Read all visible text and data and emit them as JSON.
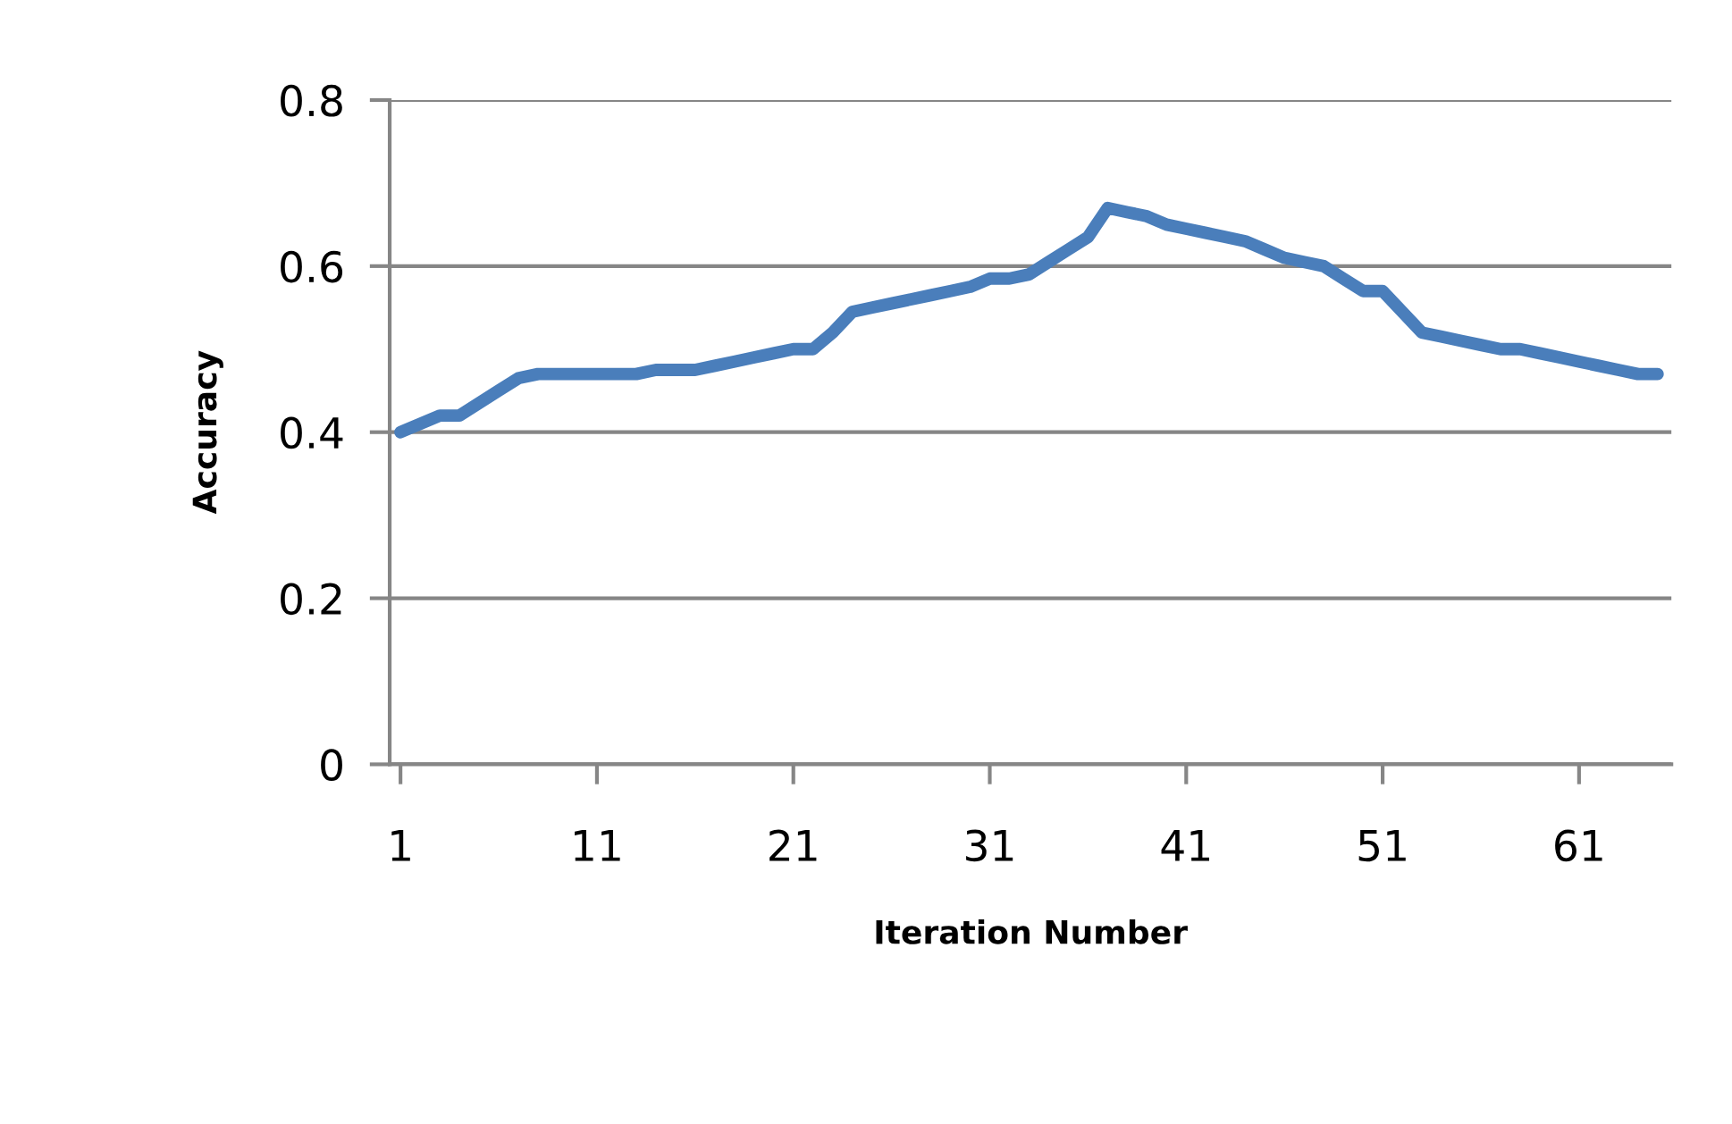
{
  "chart_data": {
    "type": "line",
    "xlabel": "Iteration Number",
    "ylabel": "Accuracy",
    "categories": [
      "1",
      null,
      null,
      null,
      null,
      null,
      null,
      null,
      null,
      null,
      "11",
      null,
      null,
      null,
      null,
      null,
      null,
      null,
      null,
      null,
      "21",
      null,
      null,
      null,
      null,
      null,
      null,
      null,
      null,
      null,
      "31",
      null,
      null,
      null,
      null,
      null,
      null,
      null,
      null,
      null,
      "41",
      null,
      null,
      null,
      null,
      null,
      null,
      null,
      null,
      null,
      "51",
      null,
      null,
      null,
      null,
      null,
      null,
      null,
      null,
      null,
      "61",
      null,
      null,
      null,
      null
    ],
    "series": [
      {
        "color": "#4a7ebb",
        "values": [
          0.4,
          0.41,
          0.42,
          0.42,
          0.435,
          0.45,
          0.465,
          0.47,
          0.47,
          0.47,
          0.47,
          0.47,
          0.47,
          0.475,
          0.475,
          0.475,
          0.48,
          0.485,
          0.49,
          0.495,
          0.5,
          0.5,
          0.52,
          0.545,
          0.55,
          0.555,
          0.56,
          0.565,
          0.57,
          0.575,
          0.585,
          0.585,
          0.59,
          0.605,
          0.62,
          0.635,
          0.67,
          0.665,
          0.66,
          0.65,
          0.645,
          0.64,
          0.635,
          0.63,
          0.62,
          0.61,
          0.605,
          0.6,
          0.585,
          0.57,
          0.57,
          0.545,
          0.52,
          0.515,
          0.51,
          0.505,
          0.5,
          0.5,
          0.495,
          0.49,
          0.485,
          0.48,
          0.475,
          0.47,
          0.47
        ]
      }
    ],
    "ylim": [
      0,
      0.8
    ],
    "yticks": [
      0,
      0.2,
      0.4,
      0.6,
      0.8
    ],
    "grid": "y",
    "legend": false,
    "marker": "none",
    "line_style": "solid"
  }
}
